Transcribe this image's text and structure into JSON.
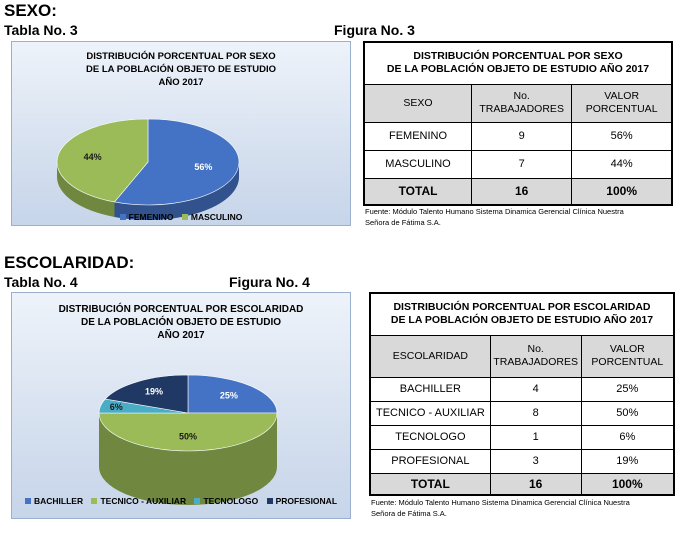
{
  "sexo": {
    "heading": "SEXO",
    "table_caption": "Tabla No. 3",
    "figure_caption": "Figura No. 3",
    "chart": {
      "title_lines": [
        "DISTRIBUCIÓN PORCENTUAL POR SEXO",
        "DE LA POBLACIÓN OBJETO DE ESTUDIO",
        "AÑO 2017"
      ]
    },
    "table": {
      "title_lines": [
        "DISTRIBUCIÓN PORCENTUAL POR SEXO",
        "DE LA POBLACIÓN OBJETO DE ESTUDIO AÑO 2017"
      ],
      "headers": [
        [
          "SEXO"
        ],
        [
          "No.",
          "TRABAJADORES"
        ],
        [
          "VALOR",
          "PORCENTUAL"
        ]
      ],
      "rows": [
        [
          "FEMENINO",
          "9",
          "56%"
        ],
        [
          "MASCULINO",
          "7",
          "44%"
        ]
      ],
      "total": [
        "TOTAL",
        "16",
        "100%"
      ]
    },
    "source_lines": [
      "Fuente: Módulo Talento Humano Sistema Dinamica Gerencial Clínica Nuestra",
      "Señora de Fátima S.A."
    ]
  },
  "escolaridad": {
    "heading": "ESCOLARIDAD",
    "table_caption": "Tabla No. 4",
    "figure_caption": "Figura No. 4",
    "chart": {
      "title_lines": [
        "DISTRIBUCIÓN PORCENTUAL POR ESCOLARIDAD",
        "DE LA POBLACIÓN OBJETO DE ESTUDIO",
        "AÑO 2017"
      ]
    },
    "table": {
      "title_lines": [
        "DISTRIBUCIÓN PORCENTUAL POR ESCOLARIDAD",
        "DE LA POBLACIÓN OBJETO DE ESTUDIO AÑO 2017"
      ],
      "headers": [
        [
          "ESCOLARIDAD"
        ],
        [
          "No.",
          "TRABAJADORES"
        ],
        [
          "VALOR",
          "PORCENTUAL"
        ]
      ],
      "rows": [
        [
          "BACHILLER",
          "4",
          "25%"
        ],
        [
          "TECNICO - AUXILIAR",
          "8",
          "50%"
        ],
        [
          "TECNOLOGO",
          "1",
          "6%"
        ],
        [
          "PROFESIONAL",
          "3",
          "19%"
        ]
      ],
      "total": [
        "TOTAL",
        "16",
        "100%"
      ]
    },
    "source_lines": [
      "Fuente: Módulo Talento Humano Sistema Dinamica Gerencial Clínica Nuestra",
      "Señora de Fátima S.A."
    ]
  },
  "chart_data": [
    {
      "type": "pie",
      "title": "DISTRIBUCIÓN PORCENTUAL POR SEXO DE LA POBLACIÓN OBJETO DE ESTUDIO AÑO 2017",
      "categories": [
        "FEMENINO",
        "MASCULINO"
      ],
      "values": [
        56,
        44
      ],
      "data_labels": [
        "56%",
        "44%"
      ],
      "colors": [
        "#4472c4",
        "#9bbb59"
      ],
      "legend": "bottom"
    },
    {
      "type": "pie",
      "title": "DISTRIBUCIÓN PORCENTUAL POR ESCOLARIDAD DE LA POBLACIÓN OBJETO DE ESTUDIO AÑO 2017",
      "categories": [
        "BACHILLER",
        "TECNICO - AUXILIAR",
        "TECNOLOGO",
        "PROFESIONAL"
      ],
      "values": [
        25,
        50,
        6,
        19
      ],
      "data_labels": [
        "25%",
        "50%",
        "6%",
        "19%"
      ],
      "colors": [
        "#4472c4",
        "#9bbb59",
        "#4bacc6",
        "#1f3864"
      ],
      "legend": "bottom"
    }
  ]
}
